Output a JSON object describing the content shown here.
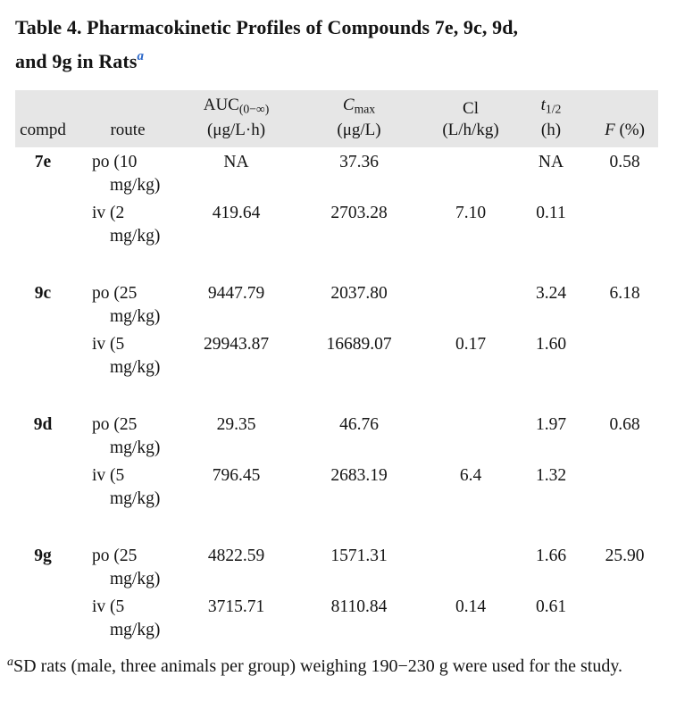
{
  "title": {
    "line1": "Table 4. Pharmacokinetic Profiles of Compounds 7e, 9c, 9d,",
    "line2": "and 9g in Rats",
    "footnote_marker": "a",
    "marker_color": "#2a66c8"
  },
  "table": {
    "header_bg": "#e6e6e6",
    "columns": {
      "compd": {
        "label": "compd"
      },
      "route": {
        "label": "route"
      },
      "auc": {
        "symbol": "AUC",
        "subscript": "(0−∞)",
        "units": "(μg/L·h)"
      },
      "cmax": {
        "symbol": "C",
        "subscript": "max",
        "units": "(μg/L)"
      },
      "cl": {
        "symbol": "Cl",
        "units": "(L/h/kg)"
      },
      "thalf": {
        "symbol": "t",
        "subscript": "1/2",
        "units": "(h)"
      },
      "f": {
        "symbol": "F",
        "units": "(%)"
      }
    },
    "groups": [
      {
        "compd": "7e",
        "rows": [
          {
            "route1": "po (10",
            "route2": "mg/kg)",
            "auc": "NA",
            "cmax": "37.36",
            "cl": "",
            "thalf": "NA",
            "f": "0.58"
          },
          {
            "route1": "iv (2",
            "route2": "mg/kg)",
            "auc": "419.64",
            "cmax": "2703.28",
            "cl": "7.10",
            "thalf": "0.11",
            "f": ""
          }
        ]
      },
      {
        "compd": "9c",
        "rows": [
          {
            "route1": "po (25",
            "route2": "mg/kg)",
            "auc": "9447.79",
            "cmax": "2037.80",
            "cl": "",
            "thalf": "3.24",
            "f": "6.18"
          },
          {
            "route1": "iv (5",
            "route2": "mg/kg)",
            "auc": "29943.87",
            "cmax": "16689.07",
            "cl": "0.17",
            "thalf": "1.60",
            "f": ""
          }
        ]
      },
      {
        "compd": "9d",
        "rows": [
          {
            "route1": "po (25",
            "route2": "mg/kg)",
            "auc": "29.35",
            "cmax": "46.76",
            "cl": "",
            "thalf": "1.97",
            "f": "0.68"
          },
          {
            "route1": "iv (5",
            "route2": "mg/kg)",
            "auc": "796.45",
            "cmax": "2683.19",
            "cl": "6.4",
            "thalf": "1.32",
            "f": ""
          }
        ]
      },
      {
        "compd": "9g",
        "rows": [
          {
            "route1": "po (25",
            "route2": "mg/kg)",
            "auc": "4822.59",
            "cmax": "1571.31",
            "cl": "",
            "thalf": "1.66",
            "f": "25.90"
          },
          {
            "route1": "iv (5",
            "route2": "mg/kg)",
            "auc": "3715.71",
            "cmax": "8110.84",
            "cl": "0.14",
            "thalf": "0.61",
            "f": ""
          }
        ]
      }
    ]
  },
  "footnote": {
    "marker": "a",
    "text": "SD rats (male, three animals per group) weighing 190−230 g were used for the study."
  }
}
